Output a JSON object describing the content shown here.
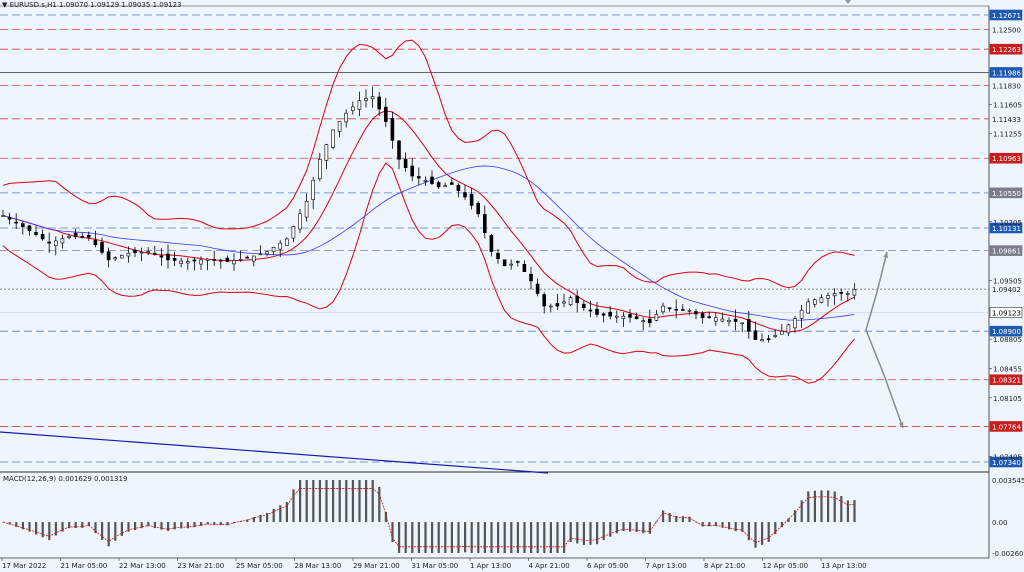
{
  "header": {
    "symbol": "EURUSD.s,H1",
    "ohlc": "1.09070 1.09129 1.09035 1.09123"
  },
  "macd": {
    "label": "MACD(12,26,9) 0.001629 0.001319",
    "ticks": [
      "0.003545",
      "0.00",
      "-0.002607"
    ]
  },
  "colors": {
    "background": "#eef5fc",
    "candles": "#000000",
    "bollinger": "#e0000f",
    "ma": "#3a3aff",
    "trendline": "#1a1aa8",
    "resistance_red": "#c81e1e",
    "level_blue": "#1e64c8",
    "arrows": "#8a8a8a",
    "macd_hist": "#555555",
    "macd_signal": "#d01010"
  },
  "chart_data": {
    "type": "candlestick",
    "symbol": "EURUSD.s",
    "timeframe": "H1",
    "ylim": [
      1.0721,
      1.1291
    ],
    "y_ticks": [
      1.126,
      1.1225,
      1.119,
      1.116,
      1.1125,
      1.1095,
      1.106,
      1.1025,
      1.099,
      1.0955,
      1.0925,
      1.089,
      1.0855,
      1.082,
      1.0785,
      1.075
    ],
    "y_tick_labels": [
      "1.12671",
      "1.12500",
      "1.12263",
      "1.11986",
      "1.11830",
      "1.11605",
      "1.11433",
      "1.11255",
      "1.10963",
      "1.10550",
      "1.10205",
      "1.10131",
      "1.09861",
      "1.09505",
      "1.09402",
      "1.09123",
      "1.08900",
      "1.08805",
      "1.08455",
      "1.08321",
      "1.08105",
      "1.07764",
      "1.07405",
      "1.07340"
    ],
    "x_tick_labels": [
      "17 Mar 2022",
      "21 Mar 05:00",
      "22 Mar 13:00",
      "23 Mar 21:00",
      "25 Mar 05:00",
      "28 Mar 13:00",
      "29 Mar 21:00",
      "31 Mar 05:00",
      "1 Apr 13:00",
      "4 Apr 21:00",
      "6 Apr 05:00",
      "7 Apr 13:00",
      "8 Apr 21:00",
      "12 Apr 05:00",
      "13 Apr 13:00"
    ],
    "levels": [
      {
        "label": "1.12671",
        "value": 1.12671,
        "style": "blue-dash",
        "boxed": "blue"
      },
      {
        "label": "1.12500",
        "value": 1.125,
        "style": "red-dash",
        "boxed": "none"
      },
      {
        "label": "1.12263",
        "value": 1.12263,
        "style": "red-dash",
        "boxed": "red"
      },
      {
        "label": "1.11986",
        "value": 1.11986,
        "style": "solid-gray",
        "boxed": "blue"
      },
      {
        "label": "1.11830",
        "value": 1.1183,
        "style": "red-dash",
        "boxed": "none"
      },
      {
        "label": "1.11433",
        "value": 1.11433,
        "style": "red-dash",
        "boxed": "none"
      },
      {
        "label": "1.10963",
        "value": 1.10963,
        "style": "red-dash",
        "boxed": "red"
      },
      {
        "label": "1.10550",
        "value": 1.1055,
        "style": "blue-dash",
        "boxed": "gray"
      },
      {
        "label": "1.10131",
        "value": 1.10131,
        "style": "blue-dash",
        "boxed": "blue"
      },
      {
        "label": "1.09861",
        "value": 1.09861,
        "style": "gray-dash",
        "boxed": "gray"
      },
      {
        "label": "1.09402",
        "value": 1.09402,
        "style": "dotted",
        "boxed": "none"
      },
      {
        "label": "1.09123",
        "value": 1.09123,
        "style": "solid-light",
        "boxed": "white"
      },
      {
        "label": "1.08900",
        "value": 1.089,
        "style": "blue-dash",
        "boxed": "blue"
      },
      {
        "label": "1.08321",
        "value": 1.08321,
        "style": "red-dash",
        "boxed": "red"
      },
      {
        "label": "1.07764",
        "value": 1.07764,
        "style": "red-dash",
        "boxed": "red"
      },
      {
        "label": "1.07340",
        "value": 1.0734,
        "style": "blue-dash",
        "boxed": "blue"
      }
    ],
    "plain_ticks": [
      {
        "label": "1.11605",
        "value": 1.11605
      },
      {
        "label": "1.11255",
        "value": 1.11255
      },
      {
        "label": "1.10205",
        "value": 1.10205
      },
      {
        "label": "1.09505",
        "value": 1.09505
      },
      {
        "label": "1.08805",
        "value": 1.08805
      },
      {
        "label": "1.08455",
        "value": 1.08455
      },
      {
        "label": "1.08105",
        "value": 1.08105
      },
      {
        "label": "1.07405",
        "value": 1.07405
      }
    ],
    "price_path": [
      [
        0,
        1.1028
      ],
      [
        4,
        1.101
      ],
      [
        7,
        1.0995
      ],
      [
        10,
        1.1003
      ],
      [
        13,
        1.1002
      ],
      [
        16,
        1.0975
      ],
      [
        19,
        1.0983
      ],
      [
        22,
        1.0985
      ],
      [
        25,
        1.0975
      ],
      [
        28,
        1.0973
      ],
      [
        31,
        1.0976
      ],
      [
        34,
        1.0973
      ],
      [
        37,
        1.0977
      ],
      [
        40,
        1.0985
      ],
      [
        43,
        1.1
      ],
      [
        46,
        1.1045
      ],
      [
        48,
        1.1095
      ],
      [
        50,
        1.113
      ],
      [
        52,
        1.115
      ],
      [
        54,
        1.1165
      ],
      [
        56,
        1.117
      ],
      [
        58,
        1.114
      ],
      [
        60,
        1.1095
      ],
      [
        62,
        1.1075
      ],
      [
        64,
        1.107
      ],
      [
        66,
        1.1062
      ],
      [
        68,
        1.1065
      ],
      [
        70,
        1.105
      ],
      [
        72,
        1.103
      ],
      [
        74,
        1.0985
      ],
      [
        76,
        1.0968
      ],
      [
        78,
        1.0972
      ],
      [
        80,
        1.095
      ],
      [
        82,
        1.092
      ],
      [
        84,
        1.092
      ],
      [
        86,
        1.093
      ],
      [
        88,
        1.0918
      ],
      [
        90,
        1.091
      ],
      [
        92,
        1.0908
      ],
      [
        94,
        1.0908
      ],
      [
        96,
        1.0905
      ],
      [
        98,
        1.09
      ],
      [
        100,
        1.092
      ],
      [
        102,
        1.0915
      ],
      [
        104,
        1.0915
      ],
      [
        106,
        1.0906
      ],
      [
        108,
        1.0906
      ],
      [
        110,
        1.0903
      ],
      [
        112,
        1.09
      ],
      [
        114,
        1.088
      ],
      [
        116,
        1.088
      ],
      [
        118,
        1.089
      ],
      [
        120,
        1.0905
      ],
      [
        122,
        1.0925
      ],
      [
        124,
        1.093
      ],
      [
        126,
        1.0935
      ],
      [
        128,
        1.0935
      ],
      [
        129,
        1.094
      ]
    ],
    "macd_range": [
      -0.002607,
      0.003545
    ]
  }
}
